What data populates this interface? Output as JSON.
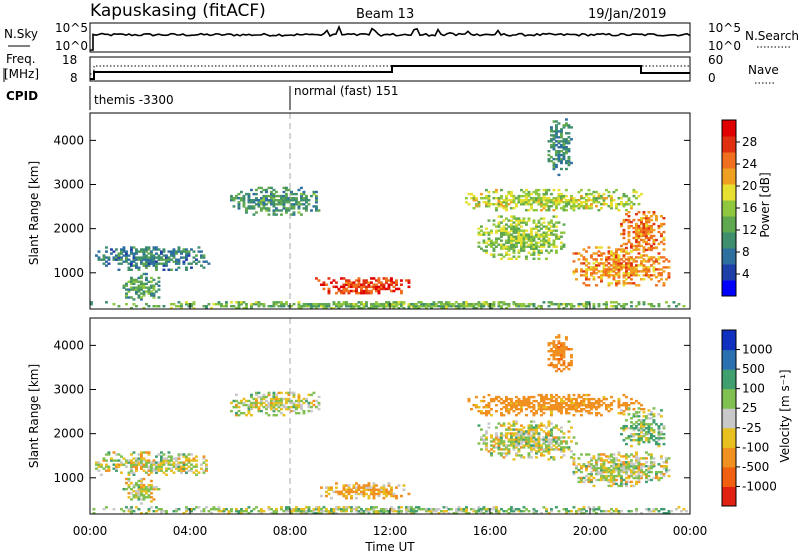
{
  "header": {
    "title": "Kapuskasing (fitACF)",
    "beam": "Beam 13",
    "date": "19/Jan/2019"
  },
  "panels": {
    "nsky_label": "N.Sky",
    "nsky_ticks": [
      "10^5",
      "10^0"
    ],
    "nsearch_label": "N.Search",
    "nsearch_ticks": [
      "10^5",
      "10^0"
    ],
    "freq_label_1": "Freq.",
    "freq_label_2": "[MHz]",
    "freq_ticks": [
      "18",
      "8"
    ],
    "nave_label": "Nave",
    "nave_ticks": [
      "60",
      "0"
    ],
    "cpid_label": "CPID",
    "cpid_segments": [
      {
        "label": "themis -3300",
        "start_hour": 0
      },
      {
        "label": "normal (fast) 151",
        "start_hour": 8
      }
    ]
  },
  "chart_data": [
    {
      "type": "heatmap",
      "title": "",
      "quantity": "Power",
      "xlabel": "Time UT",
      "ylabel": "Slant Range [km]",
      "x_range_hours": [
        0,
        24
      ],
      "xticks": [
        "00:00",
        "04:00",
        "08:00",
        "12:00",
        "16:00",
        "20:00",
        "00:00"
      ],
      "ylim": [
        180,
        4620
      ],
      "yticks": [
        1000,
        2000,
        3000,
        4000
      ],
      "colorbar": {
        "label": "Power [dB]",
        "range": [
          0,
          32
        ],
        "ticks": [
          "4",
          "8",
          "12",
          "16",
          "20",
          "24",
          "28"
        ],
        "colors": [
          "#0000ff",
          "#1f3fa8",
          "#2f6f9f",
          "#3f8f6f",
          "#5fa84f",
          "#8fc83f",
          "#e8e030",
          "#f0a020",
          "#f07020",
          "#e03010",
          "#e00000"
        ]
      },
      "regions": [
        {
          "t": [
            0.2,
            4.8
          ],
          "r": [
            1050,
            1600
          ],
          "value": 9
        },
        {
          "t": [
            1.3,
            2.8
          ],
          "r": [
            380,
            1000
          ],
          "value": 12
        },
        {
          "t": [
            5.6,
            9.2
          ],
          "r": [
            2300,
            2950
          ],
          "value": 11
        },
        {
          "t": [
            9.0,
            12.8
          ],
          "r": [
            520,
            900
          ],
          "value": 27
        },
        {
          "t": [
            15.0,
            22.2
          ],
          "r": [
            2400,
            2900
          ],
          "value": 17
        },
        {
          "t": [
            15.5,
            19.0
          ],
          "r": [
            1300,
            2300
          ],
          "value": 16
        },
        {
          "t": [
            19.3,
            23.2
          ],
          "r": [
            700,
            1600
          ],
          "value": 23
        },
        {
          "t": [
            21.2,
            23.0
          ],
          "r": [
            1500,
            2400
          ],
          "value": 24
        },
        {
          "t": [
            18.3,
            19.3
          ],
          "r": [
            3200,
            4500
          ],
          "value": 10
        },
        {
          "t": [
            0,
            24
          ],
          "r": [
            180,
            360
          ],
          "value": 14
        }
      ]
    },
    {
      "type": "heatmap",
      "title": "",
      "quantity": "Velocity",
      "xlabel": "Time UT",
      "ylabel": "Slant Range [km]",
      "x_range_hours": [
        0,
        24
      ],
      "xticks": [
        "00:00",
        "04:00",
        "08:00",
        "12:00",
        "16:00",
        "20:00",
        "00:00"
      ],
      "ylim": [
        180,
        4620
      ],
      "yticks": [
        1000,
        2000,
        3000,
        4000
      ],
      "colorbar": {
        "label": "Velocity [m s⁻¹]",
        "ticks": [
          "1000",
          "500",
          "100",
          "25",
          "-25",
          "-100",
          "-500",
          "-1000"
        ],
        "colors": [
          "#1030c0",
          "#2a6fb0",
          "#3f9f6f",
          "#7fc050",
          "#c8c8c8",
          "#e8c020",
          "#f09020",
          "#f06010",
          "#e02010"
        ]
      },
      "regions": [
        {
          "t": [
            0.2,
            4.8
          ],
          "r": [
            1050,
            1600
          ],
          "value": 0
        },
        {
          "t": [
            1.3,
            2.8
          ],
          "r": [
            400,
            1000
          ],
          "value": 0
        },
        {
          "t": [
            5.6,
            9.2
          ],
          "r": [
            2400,
            2950
          ],
          "value": 0
        },
        {
          "t": [
            9.2,
            12.8
          ],
          "r": [
            520,
            900
          ],
          "value": -90
        },
        {
          "t": [
            15.0,
            22.2
          ],
          "r": [
            2400,
            2900
          ],
          "value": -200
        },
        {
          "t": [
            15.5,
            19.5
          ],
          "r": [
            1400,
            2300
          ],
          "value": 0
        },
        {
          "t": [
            19.3,
            23.2
          ],
          "r": [
            800,
            1600
          ],
          "value": 0
        },
        {
          "t": [
            21.2,
            23.0
          ],
          "r": [
            1700,
            2600
          ],
          "value": 60
        },
        {
          "t": [
            18.3,
            19.3
          ],
          "r": [
            3400,
            4300
          ],
          "value": -400
        },
        {
          "t": [
            0,
            24
          ],
          "r": [
            180,
            360
          ],
          "value": 40
        }
      ]
    }
  ]
}
